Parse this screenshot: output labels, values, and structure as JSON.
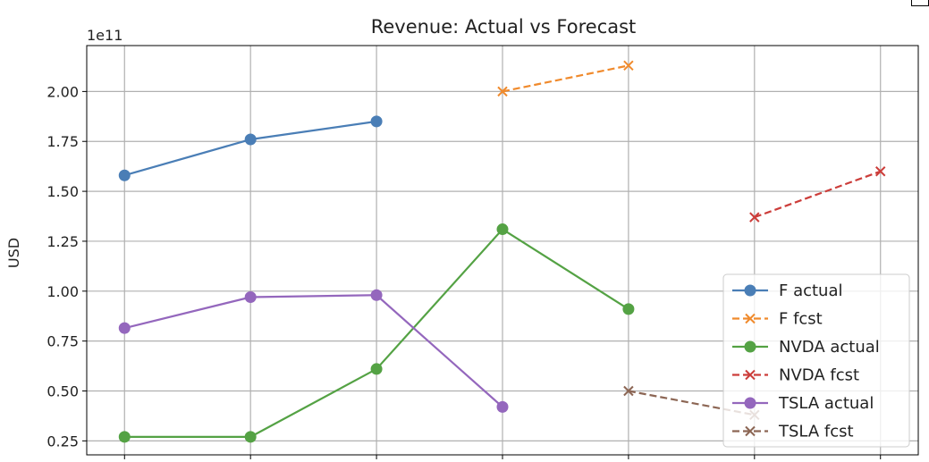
{
  "chart_data": {
    "type": "line",
    "title": "Revenue: Actual vs Forecast",
    "xlabel": "",
    "ylabel": "USD",
    "y_offset_label": "1e11",
    "x": [
      0,
      1,
      2,
      3,
      4,
      5,
      6
    ],
    "xlim": [
      -0.3,
      6.3
    ],
    "ylim": [
      0.18,
      2.23
    ],
    "y_ticks": [
      0.25,
      0.5,
      0.75,
      1.0,
      1.25,
      1.5,
      1.75,
      2.0
    ],
    "y_tick_labels": [
      "0.25",
      "0.50",
      "0.75",
      "1.00",
      "1.25",
      "1.50",
      "1.75",
      "2.00"
    ],
    "grid": true,
    "legend_position": "lower-right",
    "series": [
      {
        "name": "F actual",
        "color": "#4a7eb6",
        "dash": false,
        "marker": "circle",
        "points": [
          [
            0,
            1.58
          ],
          [
            1,
            1.76
          ],
          [
            2,
            1.85
          ]
        ]
      },
      {
        "name": "F fcst",
        "color": "#f08a2c",
        "dash": true,
        "marker": "x",
        "points": [
          [
            3,
            2.0
          ],
          [
            4,
            2.13
          ]
        ]
      },
      {
        "name": "NVDA actual",
        "color": "#54a244",
        "dash": false,
        "marker": "circle",
        "points": [
          [
            0,
            0.27
          ],
          [
            1,
            0.27
          ],
          [
            2,
            0.61
          ],
          [
            3,
            1.31
          ],
          [
            4,
            0.91
          ]
        ]
      },
      {
        "name": "NVDA fcst",
        "color": "#cc3d3a",
        "dash": true,
        "marker": "x",
        "points": [
          [
            5,
            1.37
          ],
          [
            6,
            1.6
          ]
        ]
      },
      {
        "name": "TSLA actual",
        "color": "#9467bd",
        "dash": false,
        "marker": "circle",
        "points": [
          [
            0,
            0.815
          ],
          [
            1,
            0.97
          ],
          [
            2,
            0.98
          ],
          [
            3,
            0.42
          ]
        ]
      },
      {
        "name": "TSLA fcst",
        "color": "#8c6654",
        "dash": true,
        "marker": "x",
        "points": [
          [
            4,
            0.5
          ],
          [
            5,
            0.38
          ]
        ]
      }
    ]
  }
}
